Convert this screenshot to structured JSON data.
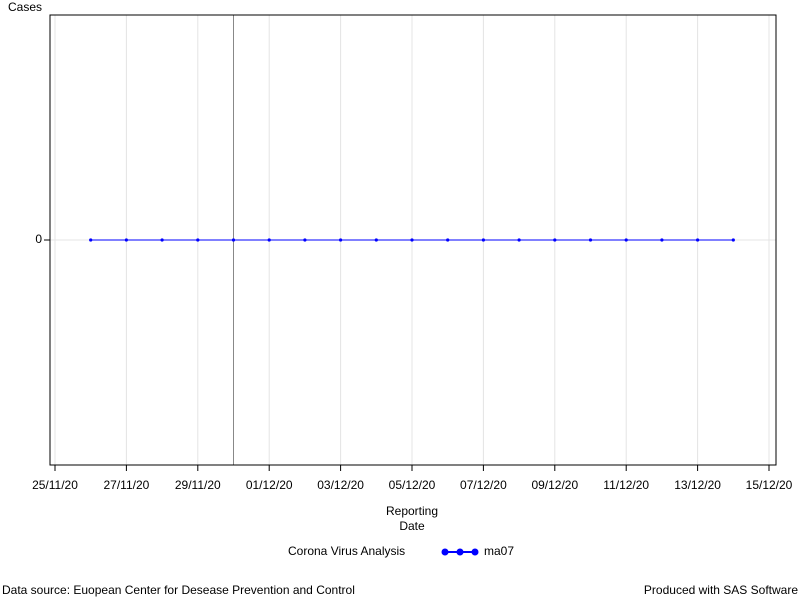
{
  "chart_data": {
    "type": "line",
    "y_label": "Cases",
    "x_label": "Reporting Date",
    "x": [
      "26/11/20",
      "27/11/20",
      "28/11/20",
      "29/11/20",
      "30/11/20",
      "01/12/20",
      "02/12/20",
      "03/12/20",
      "04/12/20",
      "05/12/20",
      "06/12/20",
      "07/12/20",
      "08/12/20",
      "09/12/20",
      "10/12/20",
      "11/12/20",
      "12/12/20",
      "13/12/20",
      "14/12/20"
    ],
    "series": [
      {
        "name": "ma07",
        "color": "#0000ff",
        "values": [
          0,
          0,
          0,
          0,
          0,
          0,
          0,
          0,
          0,
          0,
          0,
          0,
          0,
          0,
          0,
          0,
          0,
          0,
          0
        ]
      }
    ],
    "xlim": [
      "25/11/20",
      "15/12/20"
    ],
    "xticks": [
      "25/11/20",
      "27/11/20",
      "29/11/20",
      "01/12/20",
      "03/12/20",
      "05/12/20",
      "07/12/20",
      "09/12/20",
      "11/12/20",
      "13/12/20",
      "15/12/20"
    ],
    "ylim": [
      -1,
      1
    ],
    "yticks": [
      0
    ],
    "grid": true,
    "reference_lines_x": [
      "30/11/20"
    ],
    "legend_title": "Corona Virus Analysis",
    "footnote_left": "Data source: Euopean Center for Desease Prevention and Control",
    "footnote_right": "Produced with SAS Software"
  }
}
